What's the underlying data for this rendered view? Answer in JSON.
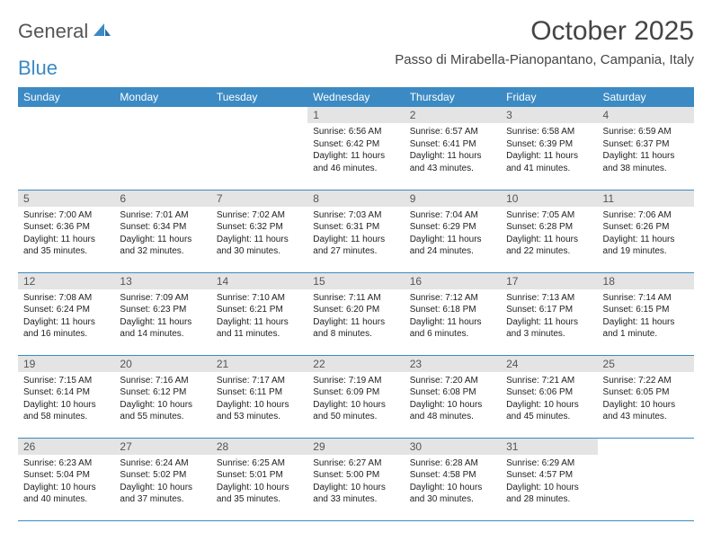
{
  "logo": {
    "word1": "General",
    "word2": "Blue"
  },
  "title": "October 2025",
  "location": "Passo di Mirabella-Pianopantano, Campania, Italy",
  "colors": {
    "header_bg": "#3b8ac4",
    "header_text": "#ffffff",
    "daynum_bg": "#e4e4e4",
    "daynum_text": "#555555",
    "cell_border": "#3b8ac4",
    "body_text": "#222222",
    "title_text": "#444444"
  },
  "daysOfWeek": [
    "Sunday",
    "Monday",
    "Tuesday",
    "Wednesday",
    "Thursday",
    "Friday",
    "Saturday"
  ],
  "firstDayIndex": 3,
  "days": [
    {
      "n": "1",
      "sunrise": "6:56 AM",
      "sunset": "6:42 PM",
      "daylight": "11 hours and 46 minutes."
    },
    {
      "n": "2",
      "sunrise": "6:57 AM",
      "sunset": "6:41 PM",
      "daylight": "11 hours and 43 minutes."
    },
    {
      "n": "3",
      "sunrise": "6:58 AM",
      "sunset": "6:39 PM",
      "daylight": "11 hours and 41 minutes."
    },
    {
      "n": "4",
      "sunrise": "6:59 AM",
      "sunset": "6:37 PM",
      "daylight": "11 hours and 38 minutes."
    },
    {
      "n": "5",
      "sunrise": "7:00 AM",
      "sunset": "6:36 PM",
      "daylight": "11 hours and 35 minutes."
    },
    {
      "n": "6",
      "sunrise": "7:01 AM",
      "sunset": "6:34 PM",
      "daylight": "11 hours and 32 minutes."
    },
    {
      "n": "7",
      "sunrise": "7:02 AM",
      "sunset": "6:32 PM",
      "daylight": "11 hours and 30 minutes."
    },
    {
      "n": "8",
      "sunrise": "7:03 AM",
      "sunset": "6:31 PM",
      "daylight": "11 hours and 27 minutes."
    },
    {
      "n": "9",
      "sunrise": "7:04 AM",
      "sunset": "6:29 PM",
      "daylight": "11 hours and 24 minutes."
    },
    {
      "n": "10",
      "sunrise": "7:05 AM",
      "sunset": "6:28 PM",
      "daylight": "11 hours and 22 minutes."
    },
    {
      "n": "11",
      "sunrise": "7:06 AM",
      "sunset": "6:26 PM",
      "daylight": "11 hours and 19 minutes."
    },
    {
      "n": "12",
      "sunrise": "7:08 AM",
      "sunset": "6:24 PM",
      "daylight": "11 hours and 16 minutes."
    },
    {
      "n": "13",
      "sunrise": "7:09 AM",
      "sunset": "6:23 PM",
      "daylight": "11 hours and 14 minutes."
    },
    {
      "n": "14",
      "sunrise": "7:10 AM",
      "sunset": "6:21 PM",
      "daylight": "11 hours and 11 minutes."
    },
    {
      "n": "15",
      "sunrise": "7:11 AM",
      "sunset": "6:20 PM",
      "daylight": "11 hours and 8 minutes."
    },
    {
      "n": "16",
      "sunrise": "7:12 AM",
      "sunset": "6:18 PM",
      "daylight": "11 hours and 6 minutes."
    },
    {
      "n": "17",
      "sunrise": "7:13 AM",
      "sunset": "6:17 PM",
      "daylight": "11 hours and 3 minutes."
    },
    {
      "n": "18",
      "sunrise": "7:14 AM",
      "sunset": "6:15 PM",
      "daylight": "11 hours and 1 minute."
    },
    {
      "n": "19",
      "sunrise": "7:15 AM",
      "sunset": "6:14 PM",
      "daylight": "10 hours and 58 minutes."
    },
    {
      "n": "20",
      "sunrise": "7:16 AM",
      "sunset": "6:12 PM",
      "daylight": "10 hours and 55 minutes."
    },
    {
      "n": "21",
      "sunrise": "7:17 AM",
      "sunset": "6:11 PM",
      "daylight": "10 hours and 53 minutes."
    },
    {
      "n": "22",
      "sunrise": "7:19 AM",
      "sunset": "6:09 PM",
      "daylight": "10 hours and 50 minutes."
    },
    {
      "n": "23",
      "sunrise": "7:20 AM",
      "sunset": "6:08 PM",
      "daylight": "10 hours and 48 minutes."
    },
    {
      "n": "24",
      "sunrise": "7:21 AM",
      "sunset": "6:06 PM",
      "daylight": "10 hours and 45 minutes."
    },
    {
      "n": "25",
      "sunrise": "7:22 AM",
      "sunset": "6:05 PM",
      "daylight": "10 hours and 43 minutes."
    },
    {
      "n": "26",
      "sunrise": "6:23 AM",
      "sunset": "5:04 PM",
      "daylight": "10 hours and 40 minutes."
    },
    {
      "n": "27",
      "sunrise": "6:24 AM",
      "sunset": "5:02 PM",
      "daylight": "10 hours and 37 minutes."
    },
    {
      "n": "28",
      "sunrise": "6:25 AM",
      "sunset": "5:01 PM",
      "daylight": "10 hours and 35 minutes."
    },
    {
      "n": "29",
      "sunrise": "6:27 AM",
      "sunset": "5:00 PM",
      "daylight": "10 hours and 33 minutes."
    },
    {
      "n": "30",
      "sunrise": "6:28 AM",
      "sunset": "4:58 PM",
      "daylight": "10 hours and 30 minutes."
    },
    {
      "n": "31",
      "sunrise": "6:29 AM",
      "sunset": "4:57 PM",
      "daylight": "10 hours and 28 minutes."
    }
  ],
  "labels": {
    "sunrise": "Sunrise:",
    "sunset": "Sunset:",
    "daylight": "Daylight:"
  }
}
